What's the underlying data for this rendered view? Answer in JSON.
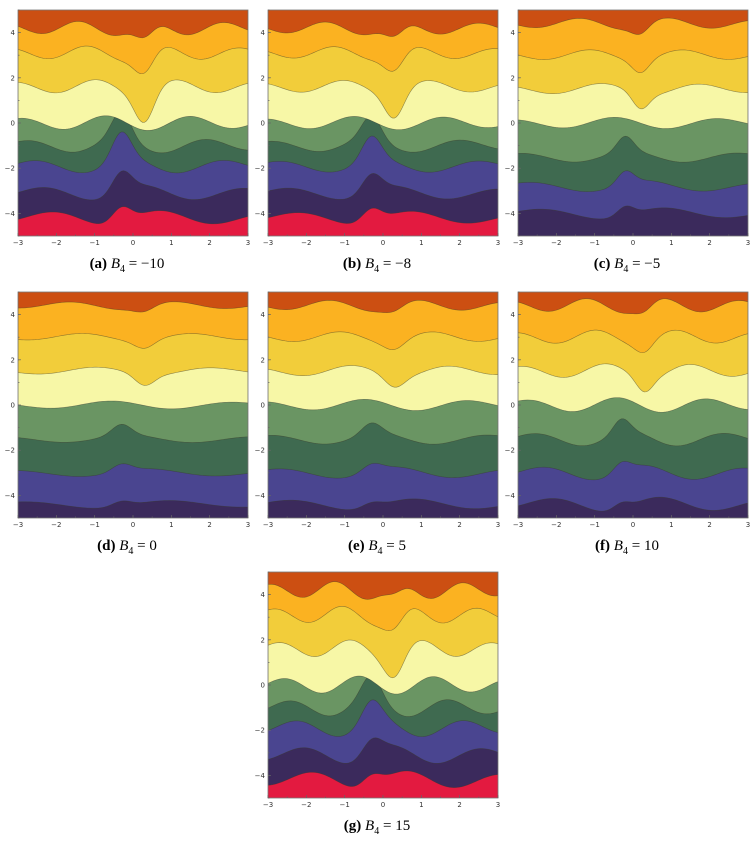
{
  "colors": {
    "levels_bottom_to_top": [
      "#e31a40",
      "#3b2a5c",
      "#4a4590",
      "#3f6a50",
      "#6a9563",
      "#f7f7a6",
      "#f2cd3a",
      "#fbb221",
      "#cc4f12"
    ],
    "frame": "#777777"
  },
  "chart_data": [
    {
      "type": "contour",
      "panel": "a",
      "label": "(a)",
      "param": "B",
      "param_sub": "4",
      "eq": "=",
      "param_value": "−10",
      "b4": -10,
      "xlim": [
        -3,
        3
      ],
      "ylim": [
        -5,
        5
      ],
      "x_ticks": [
        "−3",
        "−2",
        "−1",
        "0",
        "1",
        "2",
        "3"
      ],
      "y_ticks": [
        "−4",
        "−2",
        "0",
        "2",
        "4"
      ],
      "level_boundaries": [
        -4.2,
        -3.1,
        -1.9,
        -1.0,
        0,
        1.6,
        3.1,
        4.2
      ],
      "feature": {
        "center_x": 0.3,
        "center_y": 1.5,
        "peak_x": -0.3,
        "peak_y": -1.5,
        "strength": 3.0,
        "width": 0.35
      }
    },
    {
      "type": "contour",
      "panel": "b",
      "label": "(b)",
      "param": "B",
      "param_sub": "4",
      "eq": "=",
      "param_value": "−8",
      "b4": -8,
      "xlim": [
        -3,
        3
      ],
      "ylim": [
        -5,
        5
      ],
      "x_ticks": [
        "−3",
        "−2",
        "−1",
        "0",
        "1",
        "2",
        "3"
      ],
      "y_ticks": [
        "−4",
        "−2",
        "0",
        "2",
        "4"
      ],
      "level_boundaries": [
        -4.2,
        -3.1,
        -1.9,
        -1.0,
        0,
        1.6,
        3.1,
        4.2
      ],
      "feature": {
        "center_x": 0.3,
        "center_y": 1.5,
        "peak_x": -0.3,
        "peak_y": -1.5,
        "strength": 2.6,
        "width": 0.35
      }
    },
    {
      "type": "contour",
      "panel": "c",
      "label": "(c)",
      "param": "B",
      "param_sub": "4",
      "eq": "=",
      "param_value": "−5",
      "b4": -5,
      "xlim": [
        -3,
        3
      ],
      "ylim": [
        -5,
        5
      ],
      "x_ticks": [
        "−3",
        "−2",
        "−1",
        "0",
        "1",
        "2",
        "3"
      ],
      "y_ticks": [
        "−4",
        "−2",
        "0",
        "2",
        "4"
      ],
      "level_boundaries": [
        -4.0,
        -2.8,
        -1.5,
        0,
        1.5,
        3.0,
        4.4
      ],
      "feature": {
        "center_x": 0.2,
        "center_y": 1.8,
        "peak_x": -0.2,
        "peak_y": -1.8,
        "strength": 1.6,
        "width": 0.3
      }
    },
    {
      "type": "contour",
      "panel": "d",
      "label": "(d)",
      "param": "B",
      "param_sub": "4",
      "eq": "=",
      "param_value": "0",
      "b4": 0,
      "xlim": [
        -3,
        3
      ],
      "ylim": [
        -5,
        5
      ],
      "x_ticks": [
        "−3",
        "−2",
        "−1",
        "0",
        "1",
        "2",
        "3"
      ],
      "y_ticks": [
        "−4",
        "−2",
        "0",
        "2",
        "4"
      ],
      "level_boundaries": [
        -4.4,
        -3.0,
        -1.5,
        0,
        1.5,
        3.0,
        4.4
      ],
      "feature": {
        "center_x": 0.3,
        "center_y": 1.0,
        "peak_x": -0.3,
        "peak_y": -1.0,
        "strength": 1.2,
        "width": 0.35
      }
    },
    {
      "type": "contour",
      "panel": "e",
      "label": "(e)",
      "param": "B",
      "param_sub": "4",
      "eq": "=",
      "param_value": "5",
      "b4": 5,
      "xlim": [
        -3,
        3
      ],
      "ylim": [
        -5,
        5
      ],
      "x_ticks": [
        "−3",
        "−2",
        "−1",
        "0",
        "1",
        "2",
        "3"
      ],
      "y_ticks": [
        "−4",
        "−2",
        "0",
        "2",
        "4"
      ],
      "level_boundaries": [
        -4.4,
        -3.0,
        -1.5,
        0,
        1.5,
        3.0,
        4.4
      ],
      "feature": {
        "center_x": 0.3,
        "center_y": 1.0,
        "peak_x": -0.3,
        "peak_y": -1.0,
        "strength": 1.2,
        "width": 0.35
      }
    },
    {
      "type": "contour",
      "panel": "f",
      "label": "(f)",
      "param": "B",
      "param_sub": "4",
      "eq": "=",
      "param_value": "10",
      "b4": 10,
      "xlim": [
        -3,
        3
      ],
      "ylim": [
        -5,
        5
      ],
      "x_ticks": [
        "−3",
        "−2",
        "−1",
        "0",
        "1",
        "2",
        "3"
      ],
      "y_ticks": [
        "−4",
        "−2",
        "0",
        "2",
        "4"
      ],
      "level_boundaries": [
        -4.4,
        -3.0,
        -1.5,
        0,
        1.5,
        3.0,
        4.4
      ],
      "feature": {
        "center_x": 0.3,
        "center_y": 0.8,
        "peak_x": -0.3,
        "peak_y": -0.8,
        "strength": 1.6,
        "width": 0.3
      }
    },
    {
      "type": "contour",
      "panel": "g",
      "label": "(g)",
      "param": "B",
      "param_sub": "4",
      "eq": "=",
      "param_value": "15",
      "b4": 15,
      "xlim": [
        -3,
        3
      ],
      "ylim": [
        -5,
        5
      ],
      "x_ticks": [
        "−3",
        "−2",
        "−1",
        "0",
        "1",
        "2",
        "3"
      ],
      "y_ticks": [
        "−4",
        "−2",
        "0",
        "2",
        "4"
      ],
      "level_boundaries": [
        -4.2,
        -3.1,
        -1.9,
        -1.0,
        0,
        1.6,
        3.1,
        4.2
      ],
      "feature": {
        "center_x": 0.3,
        "center_y": 1.2,
        "peak_x": -0.3,
        "peak_y": -1.2,
        "strength": 2.4,
        "width": 0.35
      }
    }
  ]
}
